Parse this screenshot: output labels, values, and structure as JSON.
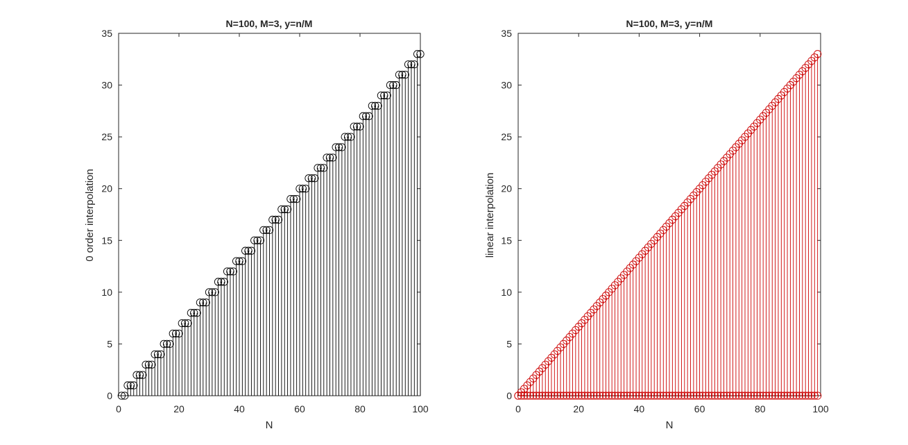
{
  "chart_data": [
    {
      "type": "stem",
      "title": "N=100, M=3, y=n/M",
      "xlabel": "N",
      "ylabel": "0 order interpolation",
      "xlim": [
        0,
        100
      ],
      "ylim": [
        0,
        35
      ],
      "xticks": [
        "0",
        "20",
        "40",
        "60",
        "80",
        "100"
      ],
      "yticks": [
        "0",
        "5",
        "10",
        "15",
        "20",
        "25",
        "30",
        "35"
      ],
      "grid": false,
      "color": "#000000",
      "marker": "circle",
      "series": [
        {
          "x": [
            1,
            2,
            3,
            4,
            5,
            6,
            7,
            8,
            9,
            10,
            11,
            12,
            13,
            14,
            15,
            16,
            17,
            18,
            19,
            20,
            21,
            22,
            23,
            24,
            25,
            26,
            27,
            28,
            29,
            30,
            31,
            32,
            33,
            34,
            35,
            36,
            37,
            38,
            39,
            40,
            41,
            42,
            43,
            44,
            45,
            46,
            47,
            48,
            49,
            50,
            51,
            52,
            53,
            54,
            55,
            56,
            57,
            58,
            59,
            60,
            61,
            62,
            63,
            64,
            65,
            66,
            67,
            68,
            69,
            70,
            71,
            72,
            73,
            74,
            75,
            76,
            77,
            78,
            79,
            80,
            81,
            82,
            83,
            84,
            85,
            86,
            87,
            88,
            89,
            90,
            91,
            92,
            93,
            94,
            95,
            96,
            97,
            98,
            99,
            100
          ],
          "y": [
            0,
            0,
            1,
            1,
            1,
            2,
            2,
            2,
            3,
            3,
            3,
            4,
            4,
            4,
            5,
            5,
            5,
            6,
            6,
            6,
            7,
            7,
            7,
            8,
            8,
            8,
            9,
            9,
            9,
            10,
            10,
            10,
            11,
            11,
            11,
            12,
            12,
            12,
            13,
            13,
            13,
            14,
            14,
            14,
            15,
            15,
            15,
            16,
            16,
            16,
            17,
            17,
            17,
            18,
            18,
            18,
            19,
            19,
            19,
            20,
            20,
            20,
            21,
            21,
            21,
            22,
            22,
            22,
            23,
            23,
            23,
            24,
            24,
            24,
            25,
            25,
            25,
            26,
            26,
            26,
            27,
            27,
            27,
            28,
            28,
            28,
            29,
            29,
            29,
            30,
            30,
            30,
            31,
            31,
            31,
            32,
            32,
            32,
            33,
            33
          ]
        }
      ]
    },
    {
      "type": "stem",
      "title": "N=100, M=3, y=n/M",
      "xlabel": "N",
      "ylabel": "linear interpolation",
      "xlim": [
        0,
        100
      ],
      "ylim": [
        0,
        35
      ],
      "xticks": [
        "0",
        "20",
        "40",
        "60",
        "80",
        "100"
      ],
      "yticks": [
        "0",
        "5",
        "10",
        "15",
        "20",
        "25",
        "30",
        "35"
      ],
      "grid": false,
      "color": "#cc0000",
      "marker": "circle",
      "series": [
        {
          "x": [
            0,
            1,
            2,
            3,
            4,
            5,
            6,
            7,
            8,
            9,
            10,
            11,
            12,
            13,
            14,
            15,
            16,
            17,
            18,
            19,
            20,
            21,
            22,
            23,
            24,
            25,
            26,
            27,
            28,
            29,
            30,
            31,
            32,
            33,
            34,
            35,
            36,
            37,
            38,
            39,
            40,
            41,
            42,
            43,
            44,
            45,
            46,
            47,
            48,
            49,
            50,
            51,
            52,
            53,
            54,
            55,
            56,
            57,
            58,
            59,
            60,
            61,
            62,
            63,
            64,
            65,
            66,
            67,
            68,
            69,
            70,
            71,
            72,
            73,
            74,
            75,
            76,
            77,
            78,
            79,
            80,
            81,
            82,
            83,
            84,
            85,
            86,
            87,
            88,
            89,
            90,
            91,
            92,
            93,
            94,
            95,
            96,
            97,
            98,
            99
          ],
          "y": [
            0,
            0.3333,
            0.6667,
            1,
            1.3333,
            1.6667,
            2,
            2.3333,
            2.6667,
            3,
            3.3333,
            3.6667,
            4,
            4.3333,
            4.6667,
            5,
            5.3333,
            5.6667,
            6,
            6.3333,
            6.6667,
            7,
            7.3333,
            7.6667,
            8,
            8.3333,
            8.6667,
            9,
            9.3333,
            9.6667,
            10,
            10.3333,
            10.6667,
            11,
            11.3333,
            11.6667,
            12,
            12.3333,
            12.6667,
            13,
            13.3333,
            13.6667,
            14,
            14.3333,
            14.6667,
            15,
            15.3333,
            15.6667,
            16,
            16.3333,
            16.6667,
            17,
            17.3333,
            17.6667,
            18,
            18.3333,
            18.6667,
            19,
            19.3333,
            19.6667,
            20,
            20.3333,
            20.6667,
            21,
            21.3333,
            21.6667,
            22,
            22.3333,
            22.6667,
            23,
            23.3333,
            23.6667,
            24,
            24.3333,
            24.6667,
            25,
            25.3333,
            25.6667,
            26,
            26.3333,
            26.6667,
            27,
            27.3333,
            27.6667,
            28,
            28.3333,
            28.6667,
            29,
            29.3333,
            29.6667,
            30,
            30.3333,
            30.6667,
            31,
            31.3333,
            31.6667,
            32,
            32.3333,
            32.6667,
            33
          ]
        },
        {
          "x": [
            0,
            1,
            2,
            3,
            4,
            5,
            6,
            7,
            8,
            9,
            10,
            11,
            12,
            13,
            14,
            15,
            16,
            17,
            18,
            19,
            20,
            21,
            22,
            23,
            24,
            25,
            26,
            27,
            28,
            29,
            30,
            31,
            32,
            33,
            34,
            35,
            36,
            37,
            38,
            39,
            40,
            41,
            42,
            43,
            44,
            45,
            46,
            47,
            48,
            49,
            50,
            51,
            52,
            53,
            54,
            55,
            56,
            57,
            58,
            59,
            60,
            61,
            62,
            63,
            64,
            65,
            66,
            67,
            68,
            69,
            70,
            71,
            72,
            73,
            74,
            75,
            76,
            77,
            78,
            79,
            80,
            81,
            82,
            83,
            84,
            85,
            86,
            87,
            88,
            89,
            90,
            91,
            92,
            93,
            94,
            95,
            96,
            97,
            98,
            99
          ],
          "y": [
            0,
            0,
            0,
            0,
            0,
            0,
            0,
            0,
            0,
            0,
            0,
            0,
            0,
            0,
            0,
            0,
            0,
            0,
            0,
            0,
            0,
            0,
            0,
            0,
            0,
            0,
            0,
            0,
            0,
            0,
            0,
            0,
            0,
            0,
            0,
            0,
            0,
            0,
            0,
            0,
            0,
            0,
            0,
            0,
            0,
            0,
            0,
            0,
            0,
            0,
            0,
            0,
            0,
            0,
            0,
            0,
            0,
            0,
            0,
            0,
            0,
            0,
            0,
            0,
            0,
            0,
            0,
            0,
            0,
            0,
            0,
            0,
            0,
            0,
            0,
            0,
            0,
            0,
            0,
            0,
            0,
            0,
            0,
            0,
            0,
            0,
            0,
            0,
            0,
            0,
            0,
            0,
            0,
            0,
            0,
            0,
            0,
            0,
            0,
            0
          ]
        }
      ]
    }
  ]
}
